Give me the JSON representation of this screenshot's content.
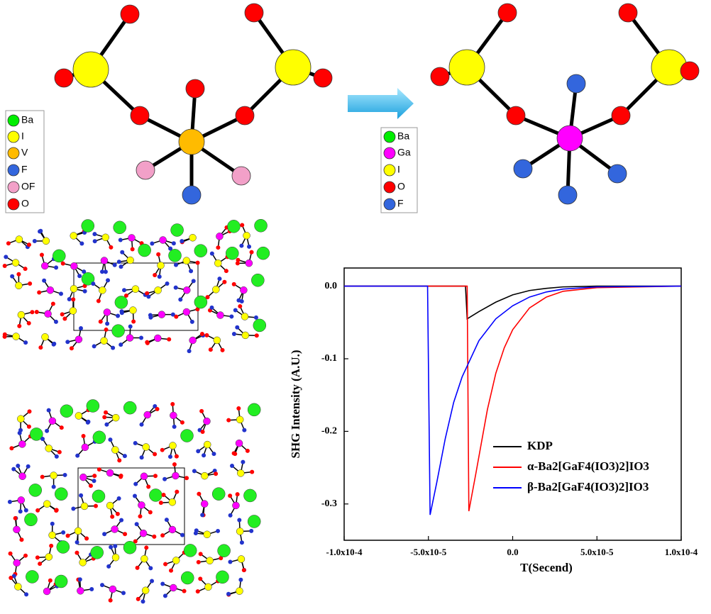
{
  "legend_left": {
    "labels": [
      "Ba",
      "I",
      "V",
      "F",
      "OF",
      "O"
    ]
  },
  "legend_right": {
    "labels": [
      "Ba",
      "Ga",
      "I",
      "O",
      "F"
    ]
  },
  "chart_data": {
    "type": "line",
    "xlabel": "T(Secend)",
    "ylabel": "SHG Intensity (A.U.)",
    "xlim": [
      -0.0001,
      0.0001
    ],
    "xticks": [
      {
        "value": -0.0001,
        "label": "-1.0x10-4"
      },
      {
        "value": -5e-05,
        "label": "-5.0x10-5"
      },
      {
        "value": 0,
        "label": "0.0"
      },
      {
        "value": 5e-05,
        "label": "5.0x10-5"
      },
      {
        "value": 0.0001,
        "label": "1.0x10-4"
      }
    ],
    "ylim": [
      -0.35,
      0.025
    ],
    "yticks": [
      {
        "value": 0,
        "label": "0.0"
      },
      -0.1,
      -0.2,
      -0.3
    ],
    "legend": "lower right",
    "series": [
      {
        "name": "KDP",
        "color": "#000000",
        "x": [
          -0.0001,
          -2.8e-05,
          -2.7e-05,
          -2e-05,
          -1e-05,
          0,
          1e-05,
          2e-05,
          3e-05,
          5e-05,
          0.0001
        ],
        "values": [
          0,
          0,
          -0.045,
          -0.035,
          -0.022,
          -0.012,
          -0.006,
          -0.003,
          -0.001,
          0,
          0
        ]
      },
      {
        "name": "α-Ba2[GaF4(IO3)2]IO3",
        "color": "#ff0000",
        "x": [
          -0.0001,
          -2.7e-05,
          -2.6e-05,
          -2.2e-05,
          -1.5e-05,
          -1e-05,
          -5e-06,
          0,
          1e-05,
          2e-05,
          3e-05,
          5e-05,
          0.0001
        ],
        "values": [
          0,
          0,
          -0.31,
          -0.26,
          -0.17,
          -0.12,
          -0.085,
          -0.06,
          -0.03,
          -0.015,
          -0.007,
          -0.002,
          0
        ]
      },
      {
        "name": "β-Ba2[GaF4(IO3)2]IO3",
        "color": "#0000ff",
        "x": [
          -0.0001,
          -5.05e-05,
          -4.9e-05,
          -4.5e-05,
          -4e-05,
          -3.5e-05,
          -3e-05,
          -2e-05,
          -1e-05,
          0,
          1e-05,
          2e-05,
          3e-05,
          5e-05,
          0.0001
        ],
        "values": [
          0,
          0,
          -0.315,
          -0.27,
          -0.21,
          -0.16,
          -0.125,
          -0.075,
          -0.045,
          -0.027,
          -0.015,
          -0.008,
          -0.004,
          -0.001,
          0
        ]
      }
    ]
  }
}
